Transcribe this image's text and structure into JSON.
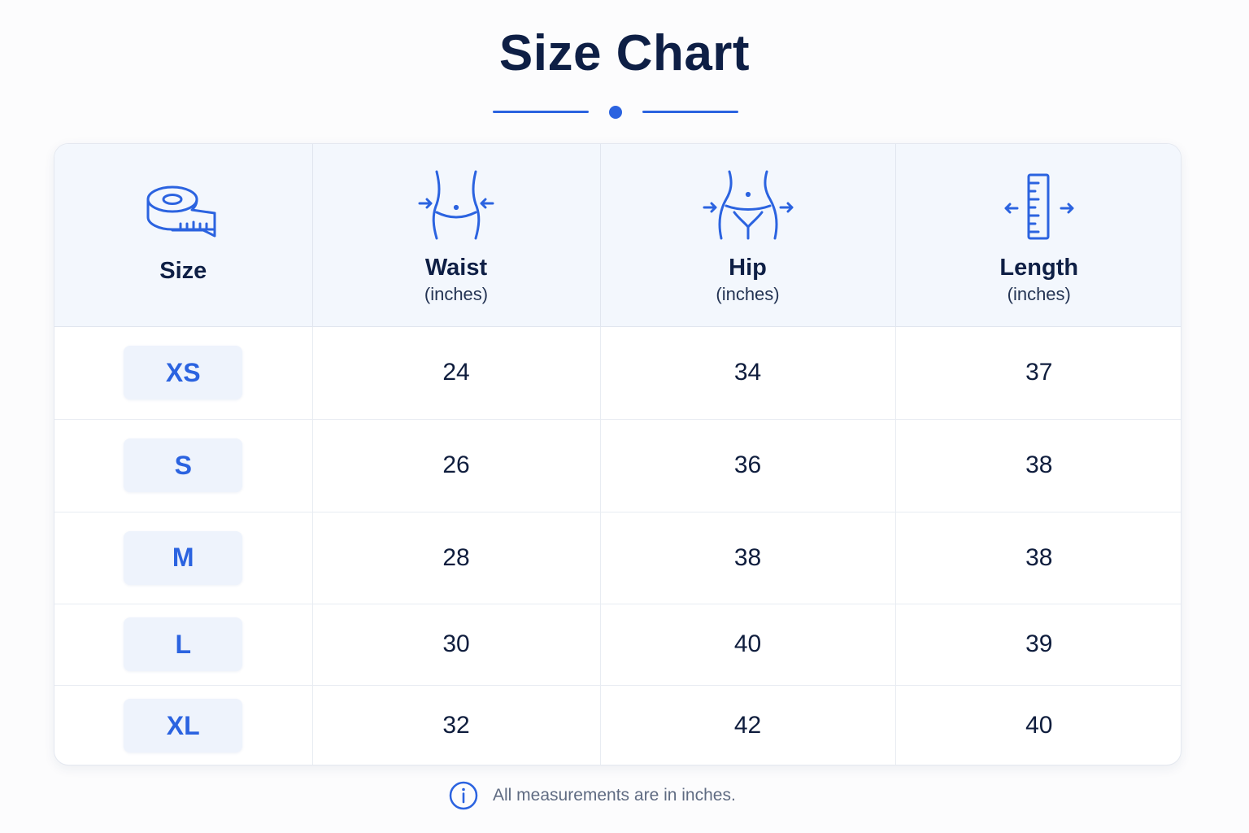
{
  "title": "Size Chart",
  "colors": {
    "accent": "#2b63e0",
    "heading": "#0e1f45",
    "header_bg": "#f3f7fd",
    "badge_bg": "#eef3fc"
  },
  "table": {
    "headers": [
      {
        "label": "Size",
        "unit": "",
        "icon": "tape-measure-icon"
      },
      {
        "label": "Waist",
        "unit": "(inches)",
        "icon": "waist-icon"
      },
      {
        "label": "Hip",
        "unit": "(inches)",
        "icon": "hip-icon"
      },
      {
        "label": "Length",
        "unit": "(inches)",
        "icon": "ruler-icon"
      }
    ],
    "rows": [
      {
        "size": "XS",
        "waist": "24",
        "hip": "34",
        "length": "37"
      },
      {
        "size": "S",
        "waist": "26",
        "hip": "36",
        "length": "38"
      },
      {
        "size": "M",
        "waist": "28",
        "hip": "38",
        "length": "38"
      },
      {
        "size": "L",
        "waist": "30",
        "hip": "40",
        "length": "39"
      },
      {
        "size": "XL",
        "waist": "32",
        "hip": "42",
        "length": "40"
      }
    ]
  },
  "note": {
    "text": "All measurements are in inches.",
    "icon": "info-icon"
  }
}
